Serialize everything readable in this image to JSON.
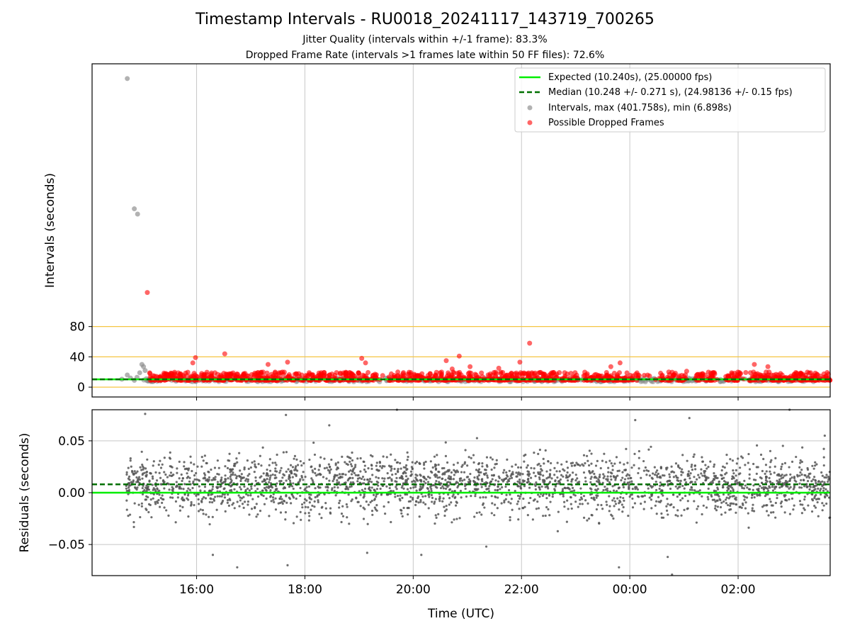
{
  "figure": {
    "title": "Timestamp Intervals - RU0018_20241117_143719_700265",
    "subtitle_1": "Jitter Quality (intervals within +/-1 frame): 83.3%",
    "subtitle_2": "Dropped Frame Rate (intervals >1 frames late within 50 FF files): 72.6%"
  },
  "colors": {
    "expected": "#00ee00",
    "median": "#007000",
    "intervals": "#888888",
    "dropped": "#ff0000",
    "guide": "#f5c542",
    "residual": "#555555",
    "grid": "#c8c8c8"
  },
  "legend": {
    "expected": "Expected (10.240s), (25.00000 fps)",
    "median": "Median (10.248 +/- 0.271 s), (24.98136 +/- 0.15 fps)",
    "intervals": "Intervals, max (401.758s), min (6.898s)",
    "dropped": "Possible Dropped Frames"
  },
  "chart_data": [
    {
      "type": "scatter",
      "ylabel": "Intervals (seconds)",
      "x_tick_values": [
        16,
        18,
        20,
        22,
        24,
        26
      ],
      "x_tick_labels": [
        "16:00",
        "18:00",
        "20:00",
        "22:00",
        "00:00",
        "02:00"
      ],
      "x_axis_unit": "hours of day (UTC), continuing past midnight",
      "xlim": [
        14.07,
        27.7
      ],
      "y_tick_values": [
        0,
        40,
        80
      ],
      "y_tick_labels": [
        "0",
        "40",
        "80"
      ],
      "ylim": [
        -13,
        427
      ],
      "horizontal_guides": [
        0,
        40,
        80
      ],
      "expected": 10.24,
      "median": 10.248,
      "legend_position": "upper right",
      "grid": "vertical",
      "interval_outliers": [
        [
          14.72,
          407.5
        ],
        [
          14.85,
          235.5
        ],
        [
          14.91,
          228.5
        ],
        [
          14.62,
          10.5
        ],
        [
          14.72,
          16
        ],
        [
          14.78,
          12
        ],
        [
          14.85,
          9
        ],
        [
          14.9,
          13
        ],
        [
          14.95,
          19
        ],
        [
          14.99,
          30
        ],
        [
          15.02,
          27
        ],
        [
          15.05,
          22
        ],
        [
          15.07,
          11
        ],
        [
          15.1,
          8
        ]
      ],
      "dropped_outliers": [
        [
          15.09,
          125
        ],
        [
          15.4,
          16
        ],
        [
          15.98,
          39
        ],
        [
          15.93,
          32
        ],
        [
          16.52,
          44
        ],
        [
          17.72,
          14
        ],
        [
          17.32,
          30
        ],
        [
          17.68,
          33
        ],
        [
          19.05,
          38
        ],
        [
          19.12,
          32
        ],
        [
          20.61,
          35
        ],
        [
          20.85,
          41
        ],
        [
          20.72,
          24
        ],
        [
          21.05,
          27
        ],
        [
          21.58,
          25
        ],
        [
          21.97,
          33
        ],
        [
          22.15,
          58
        ],
        [
          23.82,
          32
        ],
        [
          23.65,
          27
        ],
        [
          23.15,
          15
        ],
        [
          24.72,
          20
        ],
        [
          25.88,
          19
        ],
        [
          25.05,
          21
        ],
        [
          26.3,
          30
        ],
        [
          26.55,
          27
        ],
        [
          27.62,
          11
        ]
      ],
      "dropped_band": [
        9,
        20
      ],
      "interval_band": [
        7,
        12
      ]
    },
    {
      "type": "scatter",
      "ylabel": "Residuals (seconds)",
      "xlabel": "Time (UTC)",
      "x_tick_values": [
        16,
        18,
        20,
        22,
        24,
        26
      ],
      "x_tick_labels": [
        "16:00",
        "18:00",
        "20:00",
        "22:00",
        "00:00",
        "02:00"
      ],
      "xlim": [
        14.07,
        27.7
      ],
      "y_tick_values": [
        -0.05,
        0.0,
        0.05
      ],
      "y_tick_labels": [
        "−0.05",
        "0.00",
        "0.05"
      ],
      "ylim": [
        -0.08,
        0.08
      ],
      "expected": 0.0,
      "median": 0.008,
      "grid": "both",
      "residual_center": 0.008,
      "residual_spread": 0.02,
      "residual_outliers": [
        [
          15.05,
          0.076
        ],
        [
          16.3,
          -0.06
        ],
        [
          16.75,
          -0.072
        ],
        [
          17.65,
          0.075
        ],
        [
          17.68,
          -0.07
        ],
        [
          18.45,
          0.065
        ],
        [
          19.15,
          -0.058
        ],
        [
          19.7,
          0.08
        ],
        [
          20.15,
          -0.06
        ],
        [
          21.35,
          -0.052
        ],
        [
          23.8,
          -0.072
        ],
        [
          24.1,
          0.07
        ],
        [
          24.7,
          -0.062
        ],
        [
          24.78,
          -0.079
        ],
        [
          25.1,
          0.072
        ],
        [
          26.95,
          0.08
        ],
        [
          27.6,
          0.055
        ]
      ]
    }
  ]
}
